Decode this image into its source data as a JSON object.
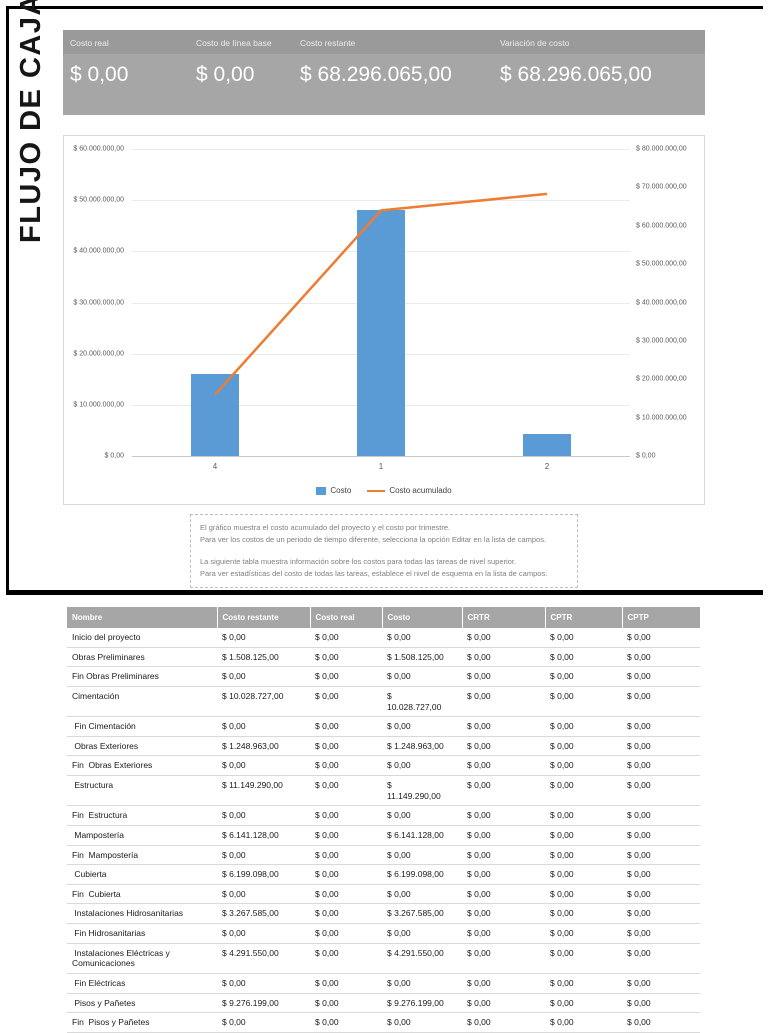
{
  "report_title": "FLUJO DE CAJA",
  "colors": {
    "bar_blue": "#5b9bd5",
    "line_orange": "#ed7d31",
    "panel_gray": "#a6a6a6",
    "axis_text": "#595959"
  },
  "kpis": [
    {
      "label": "Costo real",
      "value": "$ 0,00"
    },
    {
      "label": "Costo de línea base",
      "value": "$ 0,00"
    },
    {
      "label": "Costo restante",
      "value": "$ 68.296.065,00"
    },
    {
      "label": "Variación de costo",
      "value": "$ 68.296.065,00"
    }
  ],
  "chart_data": {
    "type": "bar",
    "subtype": "combo-bar-line-dual-axis",
    "categories": [
      "4",
      "1",
      "2"
    ],
    "series": [
      {
        "name": "Costo",
        "type": "bar",
        "axis": "left",
        "values": [
          16000000,
          48000000,
          4296065
        ]
      },
      {
        "name": "Costo acumulado",
        "type": "line",
        "axis": "right",
        "values": [
          16000000,
          64000000,
          68296065
        ]
      }
    ],
    "left_axis": {
      "min": 0,
      "max": 60000000,
      "step": 10000000,
      "labels": [
        "$ 60.000.000,00",
        "$ 50.000.000,00",
        "$ 40.000.000,00",
        "$ 30.000.000,00",
        "$ 20.000.000,00",
        "$ 10.000.000,00",
        "$ 0,00"
      ]
    },
    "right_axis": {
      "min": 0,
      "max": 80000000,
      "step": 10000000,
      "labels": [
        "$ 80.000.000,00",
        "$ 70.000.000,00",
        "$ 60.000.000,00",
        "$ 50.000.000,00",
        "$ 40.000.000,00",
        "$ 30.000.000,00",
        "$ 20.000.000,00",
        "$ 10.000.000,00",
        "$ 0,00"
      ]
    },
    "grid": true,
    "legend_position": "bottom"
  },
  "notes": [
    "El gráfico muestra el costo acumulado del proyecto y el costo por trimestre.",
    "Para ver los costos de un periodo de tiempo diferente, selecciona la opción Editar en la lista de campos.",
    "La siguiente tabla muestra información sobre los costos para todas las tareas de nivel superior.",
    "Para ver estadísticas del costo de todas las tareas, establece el nivel de esquema en la lista de campos."
  ],
  "table": {
    "columns": [
      "Nombre",
      "Costo restante",
      "Costo real",
      "Costo",
      "CRTR",
      "CPTR",
      "CPTP"
    ],
    "rows": [
      {
        "name": "Inicio del proyecto",
        "values": [
          "$ 0,00",
          "$ 0,00",
          "$ 0,00",
          "$ 0,00",
          "$ 0,00",
          "$ 0,00"
        ]
      },
      {
        "name": "Obras Preliminares",
        "values": [
          "$ 1.508.125,00",
          "$ 0,00",
          "$ 1.508.125,00",
          "$ 0,00",
          "$ 0,00",
          "$ 0,00"
        ]
      },
      {
        "name": "Fin Obras Preliminares",
        "values": [
          "$ 0,00",
          "$ 0,00",
          "$ 0,00",
          "$ 0,00",
          "$ 0,00",
          "$ 0,00"
        ]
      },
      {
        "name": "Cimentación",
        "values": [
          "$ 10.028.727,00",
          "$ 0,00",
          "$\n10.028.727,00",
          "$ 0,00",
          "$ 0,00",
          "$ 0,00"
        ]
      },
      {
        "name": " Fin Cimentación",
        "values": [
          "$ 0,00",
          "$ 0,00",
          "$ 0,00",
          "$ 0,00",
          "$ 0,00",
          "$ 0,00"
        ]
      },
      {
        "name": " Obras Exteriores",
        "values": [
          "$ 1.248.963,00",
          "$ 0,00",
          "$ 1.248.963,00",
          "$ 0,00",
          "$ 0,00",
          "$ 0,00"
        ]
      },
      {
        "name": "Fin  Obras Exteriores",
        "values": [
          "$ 0,00",
          "$ 0,00",
          "$ 0,00",
          "$ 0,00",
          "$ 0,00",
          "$ 0,00"
        ]
      },
      {
        "name": " Estructura",
        "values": [
          "$ 11.149.290,00",
          "$ 0,00",
          "$\n11.149.290,00",
          "$ 0,00",
          "$ 0,00",
          "$ 0,00"
        ]
      },
      {
        "name": "Fin  Estructura",
        "values": [
          "$ 0,00",
          "$ 0,00",
          "$ 0,00",
          "$ 0,00",
          "$ 0,00",
          "$ 0,00"
        ]
      },
      {
        "name": " Mampostería",
        "values": [
          "$ 6.141.128,00",
          "$ 0,00",
          "$ 6.141.128,00",
          "$ 0,00",
          "$ 0,00",
          "$ 0,00"
        ]
      },
      {
        "name": "Fin  Mampostería",
        "values": [
          "$ 0,00",
          "$ 0,00",
          "$ 0,00",
          "$ 0,00",
          "$ 0,00",
          "$ 0,00"
        ]
      },
      {
        "name": " Cubierta",
        "values": [
          "$ 6.199.098,00",
          "$ 0,00",
          "$ 6.199.098,00",
          "$ 0,00",
          "$ 0,00",
          "$ 0,00"
        ]
      },
      {
        "name": "Fin  Cubierta",
        "values": [
          "$ 0,00",
          "$ 0,00",
          "$ 0,00",
          "$ 0,00",
          "$ 0,00",
          "$ 0,00"
        ]
      },
      {
        "name": " Instalaciones Hidrosanitarias",
        "values": [
          "$ 3.267.585,00",
          "$ 0,00",
          "$ 3.267.585,00",
          "$ 0,00",
          "$ 0,00",
          "$ 0,00"
        ]
      },
      {
        "name": " Fin Hidrosanitarias",
        "values": [
          "$ 0,00",
          "$ 0,00",
          "$ 0,00",
          "$ 0,00",
          "$ 0,00",
          "$ 0,00"
        ]
      },
      {
        "name": " Instalaciones Eléctricas y Comunicaciones",
        "values": [
          "$ 4.291.550,00",
          "$ 0,00",
          "$ 4.291.550,00",
          "$ 0,00",
          "$ 0,00",
          "$ 0,00"
        ]
      },
      {
        "name": " Fin Eléctricas",
        "values": [
          "$ 0,00",
          "$ 0,00",
          "$ 0,00",
          "$ 0,00",
          "$ 0,00",
          "$ 0,00"
        ]
      },
      {
        "name": " Pisos y Pañetes",
        "values": [
          "$ 9.276.199,00",
          "$ 0,00",
          "$ 9.276.199,00",
          "$ 0,00",
          "$ 0,00",
          "$ 0,00"
        ]
      },
      {
        "name": "Fin  Pisos y Pañetes",
        "values": [
          "$ 0,00",
          "$ 0,00",
          "$ 0,00",
          "$ 0,00",
          "$ 0,00",
          "$ 0,00"
        ]
      }
    ]
  }
}
